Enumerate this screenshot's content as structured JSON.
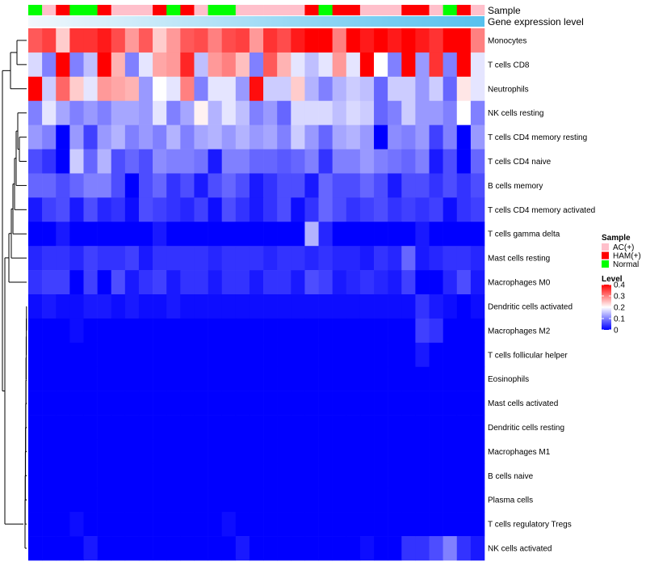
{
  "chart_data": {
    "type": "heatmap",
    "annotations": {
      "sample_label": "Sample",
      "expression_label": "Gene expression level"
    },
    "samples": [
      "Normal",
      "AC(+)",
      "HAM(+)",
      "Normal",
      "Normal",
      "HAM(+)",
      "AC(+)",
      "AC(+)",
      "AC(+)",
      "HAM(+)",
      "Normal",
      "HAM(+)",
      "AC(+)",
      "Normal",
      "Normal",
      "AC(+)",
      "AC(+)",
      "AC(+)",
      "AC(+)",
      "AC(+)",
      "HAM(+)",
      "Normal",
      "HAM(+)",
      "HAM(+)",
      "AC(+)",
      "AC(+)",
      "AC(+)",
      "HAM(+)",
      "HAM(+)",
      "AC(+)",
      "Normal",
      "HAM(+)",
      "AC(+)"
    ],
    "sample_colors": {
      "AC(+)": "#ffc0cb",
      "HAM(+)": "#ff0000",
      "Normal": "#00ff00"
    },
    "rows": [
      "Monocytes",
      "T cells CD8",
      "Neutrophils",
      "NK cells resting",
      "T cells CD4 memory resting",
      "T cells CD4 naive",
      "B cells memory",
      "T cells CD4 memory activated",
      "T cells gamma delta",
      "Mast cells resting",
      "Macrophages M0",
      "Dendritic cells activated",
      "Macrophages M2",
      "T cells follicular helper",
      "Eosinophils",
      "Mast cells activated",
      "Dendritic cells resting",
      "Macrophages M1",
      "B cells naive",
      "Plasma cells",
      "T cells regulatory  Tregs",
      "NK cells activated"
    ],
    "values": [
      [
        0.33,
        0.35,
        0.24,
        0.36,
        0.36,
        0.38,
        0.34,
        0.28,
        0.33,
        0.24,
        0.28,
        0.33,
        0.34,
        0.3,
        0.34,
        0.35,
        0.28,
        0.36,
        0.34,
        0.38,
        0.4,
        0.41,
        0.3,
        0.41,
        0.38,
        0.4,
        0.38,
        0.44,
        0.38,
        0.36,
        0.4,
        0.41,
        0.3
      ],
      [
        0.17,
        0.1,
        0.4,
        0.1,
        0.15,
        0.4,
        0.26,
        0.1,
        0.18,
        0.27,
        0.28,
        0.37,
        0.15,
        0.28,
        0.3,
        0.25,
        0.1,
        0.33,
        0.26,
        0.18,
        0.15,
        0.18,
        0.28,
        0.18,
        0.42,
        0.2,
        0.1,
        0.4,
        0.12,
        0.36,
        0.1,
        0.4,
        0.18
      ],
      [
        0.4,
        0.16,
        0.32,
        0.24,
        0.18,
        0.28,
        0.27,
        0.26,
        0.12,
        0.2,
        0.18,
        0.3,
        0.1,
        0.18,
        0.18,
        0.12,
        0.39,
        0.16,
        0.16,
        0.24,
        0.14,
        0.1,
        0.14,
        0.16,
        0.15,
        0.08,
        0.16,
        0.16,
        0.12,
        0.16,
        0.08,
        0.22,
        0.18
      ],
      [
        0.1,
        0.18,
        0.13,
        0.1,
        0.12,
        0.1,
        0.13,
        0.13,
        0.12,
        0.18,
        0.1,
        0.13,
        0.21,
        0.14,
        0.18,
        0.15,
        0.1,
        0.12,
        0.08,
        0.17,
        0.17,
        0.17,
        0.15,
        0.17,
        0.16,
        0.08,
        0.1,
        0.16,
        0.12,
        0.12,
        0.1,
        0.2,
        0.1
      ],
      [
        0.12,
        0.1,
        0.0,
        0.12,
        0.05,
        0.12,
        0.14,
        0.1,
        0.12,
        0.1,
        0.14,
        0.1,
        0.13,
        0.14,
        0.12,
        0.14,
        0.12,
        0.13,
        0.1,
        0.16,
        0.12,
        0.08,
        0.13,
        0.14,
        0.12,
        0.0,
        0.11,
        0.1,
        0.12,
        0.05,
        0.1,
        0.0,
        0.12
      ],
      [
        0.06,
        0.04,
        0.0,
        0.16,
        0.08,
        0.14,
        0.06,
        0.08,
        0.06,
        0.11,
        0.1,
        0.1,
        0.09,
        0.02,
        0.1,
        0.1,
        0.08,
        0.08,
        0.07,
        0.08,
        0.1,
        0.04,
        0.1,
        0.1,
        0.12,
        0.1,
        0.09,
        0.08,
        0.1,
        0.02,
        0.06,
        0.0,
        0.08
      ],
      [
        0.08,
        0.08,
        0.06,
        0.08,
        0.1,
        0.1,
        0.06,
        0.0,
        0.06,
        0.08,
        0.04,
        0.06,
        0.02,
        0.06,
        0.08,
        0.06,
        0.02,
        0.04,
        0.06,
        0.06,
        0.02,
        0.08,
        0.06,
        0.06,
        0.08,
        0.06,
        0.02,
        0.06,
        0.06,
        0.04,
        0.06,
        0.04,
        0.06
      ],
      [
        0.02,
        0.05,
        0.06,
        0.02,
        0.06,
        0.03,
        0.04,
        0.01,
        0.06,
        0.05,
        0.04,
        0.03,
        0.05,
        0.01,
        0.06,
        0.04,
        0.02,
        0.04,
        0.06,
        0.01,
        0.04,
        0.08,
        0.06,
        0.04,
        0.05,
        0.06,
        0.04,
        0.05,
        0.04,
        0.05,
        0.01,
        0.04,
        0.05
      ],
      [
        0.0,
        0.0,
        0.02,
        0.0,
        0.0,
        0.0,
        0.0,
        0.0,
        0.0,
        0.02,
        0.0,
        0.0,
        0.0,
        0.0,
        0.0,
        0.0,
        0.0,
        0.0,
        0.0,
        0.0,
        0.14,
        0.03,
        0.0,
        0.0,
        0.0,
        0.0,
        0.0,
        0.0,
        0.02,
        0.0,
        0.0,
        0.0,
        0.0
      ],
      [
        0.03,
        0.04,
        0.04,
        0.03,
        0.05,
        0.04,
        0.04,
        0.05,
        0.02,
        0.04,
        0.04,
        0.04,
        0.04,
        0.03,
        0.04,
        0.04,
        0.04,
        0.03,
        0.04,
        0.04,
        0.03,
        0.04,
        0.03,
        0.03,
        0.02,
        0.04,
        0.03,
        0.08,
        0.02,
        0.03,
        0.04,
        0.04,
        0.03
      ],
      [
        0.04,
        0.05,
        0.05,
        0.0,
        0.05,
        0.0,
        0.06,
        0.02,
        0.04,
        0.05,
        0.02,
        0.04,
        0.04,
        0.02,
        0.04,
        0.04,
        0.02,
        0.04,
        0.04,
        0.02,
        0.06,
        0.05,
        0.02,
        0.03,
        0.04,
        0.03,
        0.02,
        0.05,
        0.0,
        0.0,
        0.03,
        0.06,
        0.02
      ],
      [
        0.01,
        0.02,
        0.01,
        0.01,
        0.02,
        0.02,
        0.01,
        0.02,
        0.01,
        0.01,
        0.02,
        0.01,
        0.01,
        0.01,
        0.01,
        0.01,
        0.01,
        0.01,
        0.01,
        0.01,
        0.01,
        0.01,
        0.01,
        0.01,
        0.01,
        0.01,
        0.01,
        0.01,
        0.04,
        0.02,
        0.01,
        0.0,
        0.01
      ],
      [
        0.0,
        0.0,
        0.0,
        0.01,
        0.0,
        0.0,
        0.0,
        0.0,
        0.0,
        0.0,
        0.0,
        0.0,
        0.0,
        0.0,
        0.0,
        0.0,
        0.0,
        0.0,
        0.0,
        0.0,
        0.0,
        0.0,
        0.0,
        0.0,
        0.0,
        0.0,
        0.0,
        0.0,
        0.05,
        0.04,
        0.0,
        0.0,
        0.0
      ],
      [
        0.0,
        0.0,
        0.0,
        0.0,
        0.0,
        0.0,
        0.0,
        0.0,
        0.0,
        0.0,
        0.0,
        0.0,
        0.0,
        0.0,
        0.0,
        0.0,
        0.0,
        0.0,
        0.0,
        0.0,
        0.0,
        0.0,
        0.0,
        0.0,
        0.0,
        0.0,
        0.0,
        0.0,
        0.02,
        0.0,
        0.0,
        0.0,
        0.0
      ],
      [
        0.0,
        0.0,
        0.0,
        0.0,
        0.0,
        0.0,
        0.0,
        0.0,
        0.0,
        0.0,
        0.0,
        0.0,
        0.0,
        0.0,
        0.0,
        0.0,
        0.0,
        0.0,
        0.0,
        0.0,
        0.0,
        0.0,
        0.0,
        0.0,
        0.0,
        0.0,
        0.0,
        0.0,
        0.0,
        0.0,
        0.0,
        0.0,
        0.0
      ],
      [
        0.0,
        0.0,
        0.0,
        0.0,
        0.0,
        0.0,
        0.0,
        0.0,
        0.0,
        0.0,
        0.0,
        0.0,
        0.0,
        0.0,
        0.0,
        0.0,
        0.0,
        0.0,
        0.0,
        0.0,
        0.0,
        0.0,
        0.0,
        0.0,
        0.0,
        0.0,
        0.0,
        0.0,
        0.0,
        0.0,
        0.0,
        0.0,
        0.0
      ],
      [
        0.0,
        0.0,
        0.0,
        0.0,
        0.0,
        0.0,
        0.0,
        0.0,
        0.0,
        0.0,
        0.0,
        0.0,
        0.0,
        0.0,
        0.0,
        0.0,
        0.0,
        0.0,
        0.0,
        0.0,
        0.0,
        0.0,
        0.0,
        0.0,
        0.0,
        0.0,
        0.0,
        0.0,
        0.0,
        0.0,
        0.0,
        0.0,
        0.0
      ],
      [
        0.0,
        0.0,
        0.0,
        0.0,
        0.0,
        0.0,
        0.0,
        0.0,
        0.0,
        0.0,
        0.0,
        0.0,
        0.0,
        0.0,
        0.0,
        0.0,
        0.0,
        0.0,
        0.0,
        0.0,
        0.0,
        0.0,
        0.0,
        0.0,
        0.0,
        0.0,
        0.0,
        0.0,
        0.0,
        0.0,
        0.0,
        0.0,
        0.0
      ],
      [
        0.0,
        0.0,
        0.0,
        0.0,
        0.0,
        0.0,
        0.0,
        0.0,
        0.0,
        0.0,
        0.0,
        0.0,
        0.0,
        0.0,
        0.0,
        0.0,
        0.0,
        0.0,
        0.0,
        0.0,
        0.0,
        0.0,
        0.0,
        0.0,
        0.0,
        0.0,
        0.0,
        0.0,
        0.0,
        0.0,
        0.0,
        0.0,
        0.0
      ],
      [
        0.0,
        0.0,
        0.0,
        0.0,
        0.0,
        0.0,
        0.0,
        0.0,
        0.0,
        0.0,
        0.0,
        0.0,
        0.0,
        0.0,
        0.0,
        0.0,
        0.0,
        0.0,
        0.0,
        0.0,
        0.0,
        0.0,
        0.0,
        0.0,
        0.0,
        0.0,
        0.0,
        0.0,
        0.0,
        0.0,
        0.0,
        0.0,
        0.0
      ],
      [
        0.0,
        0.0,
        0.0,
        0.01,
        0.0,
        0.0,
        0.0,
        0.0,
        0.0,
        0.0,
        0.0,
        0.0,
        0.0,
        0.0,
        0.01,
        0.0,
        0.0,
        0.0,
        0.0,
        0.0,
        0.0,
        0.0,
        0.0,
        0.0,
        0.0,
        0.0,
        0.0,
        0.0,
        0.0,
        0.0,
        0.0,
        0.0,
        0.0
      ],
      [
        0.0,
        0.0,
        0.0,
        0.0,
        0.02,
        0.0,
        0.0,
        0.0,
        0.0,
        0.0,
        0.0,
        0.0,
        0.0,
        0.0,
        0.0,
        0.02,
        0.0,
        0.0,
        0.0,
        0.0,
        0.0,
        0.0,
        0.0,
        0.0,
        0.01,
        0.0,
        0.0,
        0.04,
        0.04,
        0.06,
        0.1,
        0.04,
        0.02
      ]
    ],
    "color_scale": {
      "min": 0,
      "mid": 0.2,
      "max": 0.4,
      "low": "#0000ff",
      "midcolor": "#ffffff",
      "high": "#ff0000"
    },
    "legend": {
      "sample_title": "Sample",
      "sample_items": [
        {
          "label": "AC(+)",
          "color": "#ffc0cb"
        },
        {
          "label": "HAM(+)",
          "color": "#ff0000"
        },
        {
          "label": "Normal",
          "color": "#00ff00"
        }
      ],
      "level_title": "Level",
      "level_ticks": [
        "0.4",
        "0.3",
        "0.2",
        "0.1",
        "0"
      ],
      "level_tick_values": [
        0.4,
        0.3,
        0.2,
        0.1,
        0
      ]
    }
  }
}
